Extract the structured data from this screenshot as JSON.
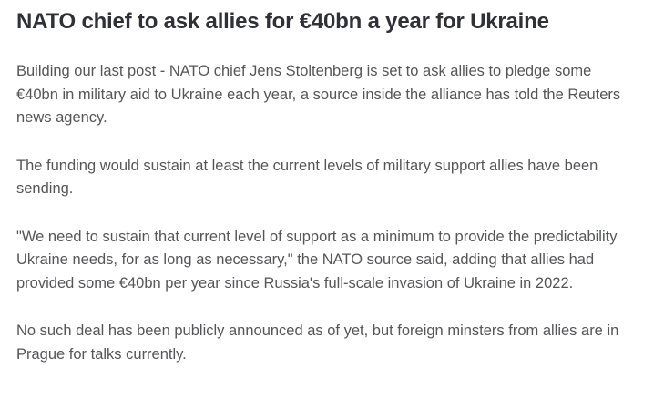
{
  "article": {
    "headline": "NATO chief to ask allies for €40bn a year for Ukraine",
    "paragraphs": [
      "Building our last post - NATO chief Jens Stoltenberg is set to ask allies to pledge some €40bn in military aid to Ukraine each year, a source inside the alliance has told the Reuters news agency.",
      "The funding would sustain at least the current levels of military support allies have been sending.",
      "\"We need to sustain that current level of support as a minimum to provide the predictability Ukraine needs, for as long as necessary,\" the NATO source said, adding that allies had provided some €40bn per year since Russia's full-scale invasion of Ukraine in 2022.",
      "No such deal has been publicly announced as of yet, but foreign minsters from allies are in Prague for talks currently."
    ],
    "colors": {
      "background": "#ffffff",
      "headline": "#303136",
      "body_text": "#55565a"
    }
  }
}
